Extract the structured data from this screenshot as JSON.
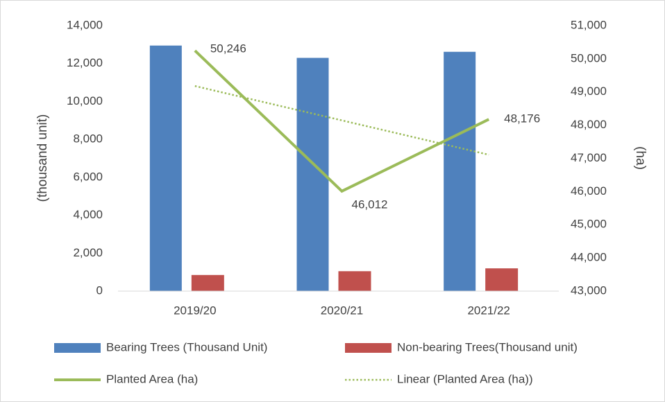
{
  "chart_data": {
    "type": "bar-line",
    "y_label": "(thousand unit)",
    "y2_label": "(ha)",
    "categories": [
      "2019/20",
      "2020/21",
      "2021/22"
    ],
    "series": [
      {
        "name": "Bearing Trees (Thousand Unit)",
        "type": "bar",
        "color": "#4f81bd",
        "values": [
          12950,
          12300,
          12620
        ]
      },
      {
        "name": "Non-bearing Trees(Thousand unit)",
        "type": "bar",
        "color": "#c0504d",
        "values": [
          850,
          1050,
          1200
        ]
      },
      {
        "name": "Planted Area (ha)",
        "type": "line",
        "axis": "y2",
        "color": "#9bbb59",
        "values": [
          50246,
          46012,
          48176
        ],
        "value_labels": [
          "50,246",
          "46,012",
          "48,176"
        ]
      },
      {
        "name": "Linear (Planted Area (ha))",
        "type": "trendline",
        "axis": "y2",
        "color": "#9bbb59",
        "values": [
          49180,
          48145,
          47110
        ]
      }
    ],
    "ylim": [
      0,
      14000
    ],
    "yticks": [
      0,
      {
        "value": 2000,
        "label": "2,000"
      },
      {
        "value": 4000,
        "label": "4,000"
      },
      {
        "value": 6000,
        "label": "6,000"
      },
      {
        "value": 8000,
        "label": "8,000"
      },
      {
        "value": 10000,
        "label": "10,000"
      },
      {
        "value": 12000,
        "label": "12,000"
      },
      {
        "value": 14000,
        "label": "14,000"
      }
    ],
    "y2lim": [
      43000,
      51000
    ],
    "y2ticks": [
      {
        "value": 43000,
        "label": "43,000"
      },
      {
        "value": 44000,
        "label": "44,000"
      },
      {
        "value": 45000,
        "label": "45,000"
      },
      {
        "value": 46000,
        "label": "46,000"
      },
      {
        "value": 47000,
        "label": "47,000"
      },
      {
        "value": 48000,
        "label": "48,000"
      },
      {
        "value": 49000,
        "label": "49,000"
      },
      {
        "value": 50000,
        "label": "50,000"
      },
      {
        "value": 51000,
        "label": "51,000"
      }
    ],
    "grid": false,
    "legend": "bottom"
  }
}
